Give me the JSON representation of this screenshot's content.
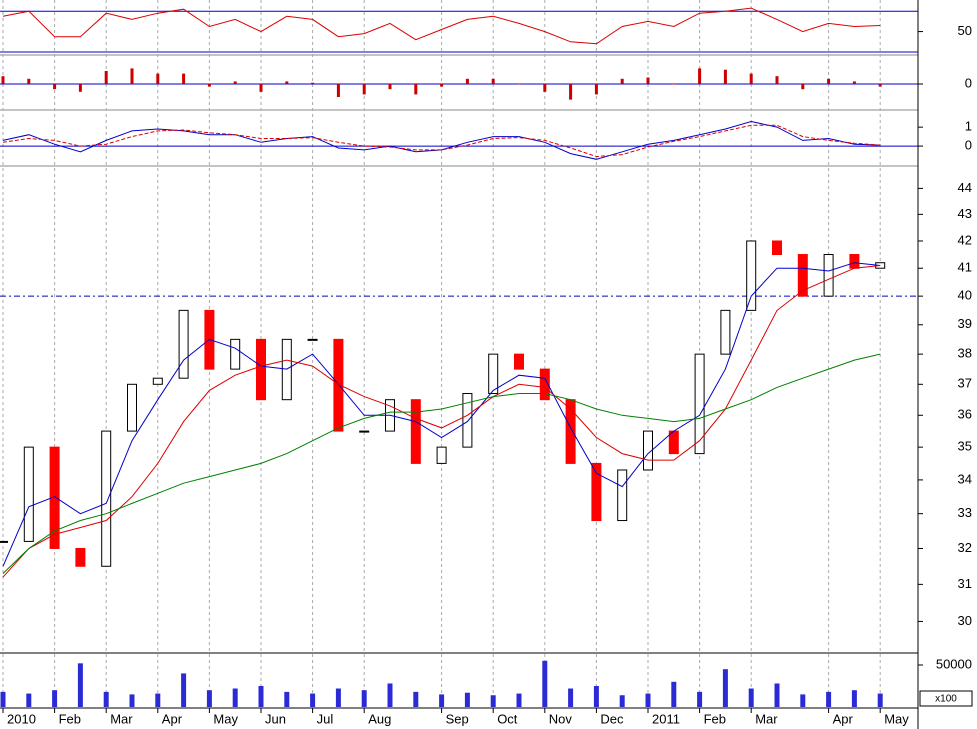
{
  "chart_data": [
    {
      "type": "line",
      "ylim": [
        27,
        81
      ],
      "yticks": [
        50
      ],
      "hlines": [
        70,
        30
      ],
      "hline_color": "#0000cc",
      "series": [
        {
          "color": "#dd0000",
          "values": [
            65,
            70,
            45,
            45,
            68,
            62,
            68,
            72,
            55,
            62,
            50,
            65,
            62,
            45,
            48,
            58,
            42,
            52,
            62,
            65,
            58,
            50,
            40,
            38,
            55,
            60,
            55,
            68,
            70,
            73,
            62,
            50,
            58,
            55,
            56
          ]
        }
      ]
    },
    {
      "type": "bar",
      "ylim": [
        -1,
        1
      ],
      "yticks": [
        0
      ],
      "hlines": [
        0
      ],
      "hline_color": "#0000cc",
      "color": "#cc0000",
      "values": [
        0.3,
        0.2,
        -0.2,
        -0.3,
        0.5,
        0.6,
        0.4,
        0.4,
        -0.1,
        0.1,
        -0.3,
        0.1,
        0.05,
        -0.5,
        -0.4,
        -0.2,
        -0.4,
        -0.1,
        0.2,
        0.2,
        0.0,
        -0.3,
        -0.6,
        -0.4,
        0.2,
        0.25,
        0.0,
        0.6,
        0.55,
        0.4,
        0.3,
        -0.2,
        0.2,
        0.1,
        -0.1
      ]
    },
    {
      "type": "line",
      "ylim": [
        -1,
        1.8
      ],
      "yticks": [
        0,
        1
      ],
      "hlines": [
        0
      ],
      "hline_color": "#0000cc",
      "series": [
        {
          "color": "#0000cc",
          "values": [
            0.3,
            0.6,
            0.1,
            -0.3,
            0.3,
            0.8,
            0.9,
            0.8,
            0.6,
            0.6,
            0.2,
            0.4,
            0.5,
            -0.1,
            -0.2,
            0.0,
            -0.3,
            -0.2,
            0.2,
            0.5,
            0.5,
            0.2,
            -0.4,
            -0.7,
            -0.3,
            0.1,
            0.3,
            0.6,
            0.9,
            1.3,
            1.0,
            0.3,
            0.4,
            0.1,
            0.05
          ]
        },
        {
          "color": "#dd0000",
          "dashed": true,
          "values": [
            0.2,
            0.4,
            0.3,
            0.0,
            0.1,
            0.5,
            0.8,
            0.85,
            0.7,
            0.6,
            0.4,
            0.4,
            0.45,
            0.2,
            0.0,
            -0.05,
            -0.2,
            -0.2,
            0.05,
            0.4,
            0.45,
            0.3,
            -0.1,
            -0.55,
            -0.45,
            -0.05,
            0.25,
            0.5,
            0.8,
            1.1,
            1.1,
            0.5,
            0.3,
            0.15,
            0.05
          ]
        }
      ]
    },
    {
      "type": "candlestick",
      "log_scale": true,
      "ylim": [
        29.2,
        44.8
      ],
      "yticks": [
        30,
        31,
        32,
        33,
        34,
        35,
        36,
        37,
        38,
        39,
        40,
        41,
        42,
        43,
        44
      ],
      "hlines": [
        40
      ],
      "hline_color": "#0000cc",
      "up_color": "#000000",
      "down_color": "#ff0000",
      "close": [
        32.2,
        35,
        32,
        31.5,
        35.5,
        37,
        37.2,
        39.5,
        37.5,
        38.5,
        36.5,
        38.5,
        38.5,
        35.5,
        35.5,
        36.5,
        34.5,
        35,
        36.7,
        38,
        37.5,
        36.5,
        34.5,
        32.8,
        34.3,
        35.5,
        34.8,
        38,
        39.5,
        42,
        41.5,
        40,
        41.5,
        41,
        41.2
      ],
      "series": [
        {
          "color": "#0000cc",
          "values": [
            31.5,
            33.2,
            33.5,
            33,
            33.3,
            35.2,
            36.5,
            37.8,
            38.5,
            38.2,
            37.6,
            37.5,
            38,
            37,
            36,
            36,
            35.8,
            35.3,
            35.8,
            36.8,
            37.3,
            37.2,
            35.6,
            34.2,
            33.8,
            34.8,
            35.5,
            36,
            37.5,
            40,
            41,
            41,
            40.9,
            41.2,
            41.1
          ]
        },
        {
          "color": "#dd0000",
          "values": [
            31.2,
            32,
            32.4,
            32.6,
            32.8,
            33.5,
            34.5,
            35.8,
            36.8,
            37.3,
            37.6,
            37.8,
            37.6,
            37,
            36.6,
            36.3,
            35.9,
            35.6,
            36,
            36.6,
            37,
            36.9,
            36.2,
            35.3,
            34.8,
            34.6,
            34.6,
            35.2,
            36.2,
            37.8,
            39.5,
            40.2,
            40.6,
            41,
            41.1
          ]
        },
        {
          "color": "#008000",
          "values": [
            31.3,
            32,
            32.5,
            32.8,
            33,
            33.3,
            33.6,
            33.9,
            34.1,
            34.3,
            34.5,
            34.8,
            35.2,
            35.6,
            35.9,
            36.1,
            36.1,
            36.2,
            36.4,
            36.6,
            36.7,
            36.7,
            36.5,
            36.2,
            36,
            35.9,
            35.8,
            35.9,
            36.2,
            36.5,
            36.9,
            37.2,
            37.5,
            37.8,
            38
          ]
        }
      ]
    },
    {
      "type": "bar",
      "ylim": [
        0,
        61900
      ],
      "yticks": [
        50000
      ],
      "unit_label": "x100",
      "color": "#2b2bd6",
      "values": [
        18000,
        16000,
        20000,
        52000,
        18000,
        15000,
        16000,
        40000,
        20000,
        22000,
        25000,
        18000,
        16000,
        22000,
        20000,
        28000,
        18000,
        15000,
        17000,
        14000,
        16000,
        55000,
        22000,
        25000,
        14000,
        16000,
        30000,
        18000,
        45000,
        22000,
        28000,
        15000,
        18000,
        20000,
        16000
      ],
      "categories": [
        "2010",
        null,
        "Feb",
        null,
        "Mar",
        null,
        "Apr",
        null,
        "May",
        null,
        "Jun",
        null,
        "Jul",
        null,
        "Aug",
        null,
        null,
        "Sep",
        null,
        "Oct",
        null,
        "Nov",
        null,
        "Dec",
        null,
        "2011",
        null,
        "Feb",
        null,
        "Mar",
        null,
        null,
        "Apr",
        null,
        "May"
      ]
    }
  ]
}
